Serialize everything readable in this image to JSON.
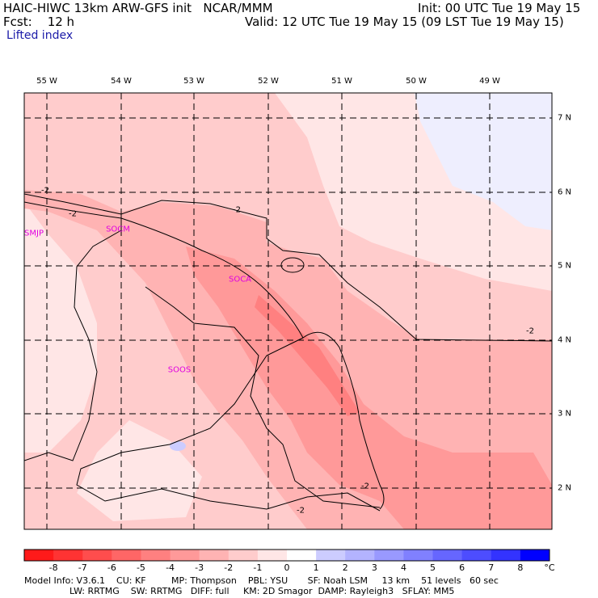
{
  "header": {
    "title": "HAIC-HIWC 13km ARW-GFS init   NCAR/MMM",
    "init": "Init: 00 UTC Tue 19 May 15",
    "fcst": "Fcst:    12 h",
    "valid": "Valid: 12 UTC Tue 19 May 15 (09 LST Tue 19 May 15)",
    "field": "Lifted index"
  },
  "axes": {
    "lon_labels": [
      "55 W",
      "54 W",
      "53 W",
      "52 W",
      "51 W",
      "50 W",
      "49 W"
    ],
    "lat_labels": [
      "7 N",
      "6 N",
      "5 N",
      "4 N",
      "3 N",
      "2 N"
    ]
  },
  "stations": [
    "SMJP",
    "SOCM",
    "SOCA",
    "SOOS"
  ],
  "contours": [
    "-2",
    "-2",
    "-2",
    "-2",
    "-2",
    "-2"
  ],
  "colorbar": {
    "labels": [
      "-8",
      "-7",
      "-6",
      "-5",
      "-4",
      "-3",
      "-2",
      "-1",
      "0",
      "1",
      "2",
      "3",
      "4",
      "5",
      "6",
      "7",
      "8"
    ],
    "unit": "°C",
    "colors": [
      "#ff1a1a",
      "#ff3333",
      "#ff4d4d",
      "#ff6666",
      "#ff8080",
      "#ff9999",
      "#ffb3b3",
      "#ffcccc",
      "#ffe6e6",
      "#ffffff",
      "#ccccff",
      "#b3b3ff",
      "#9999ff",
      "#8080ff",
      "#6666ff",
      "#4d4dff",
      "#3333ff",
      "#0000ff"
    ]
  },
  "footer": {
    "line1": "Model Info: V3.6.1    CU: KF         MP: Thompson    PBL: YSU       SF: Noah LSM     13 km    51 levels   60 sec",
    "line2": "                LW: RRTMG    SW: RRTMG   DIFF: full     KM: 2D Smagor  DAMP: Rayleigh3   SFLAY: MM5"
  }
}
